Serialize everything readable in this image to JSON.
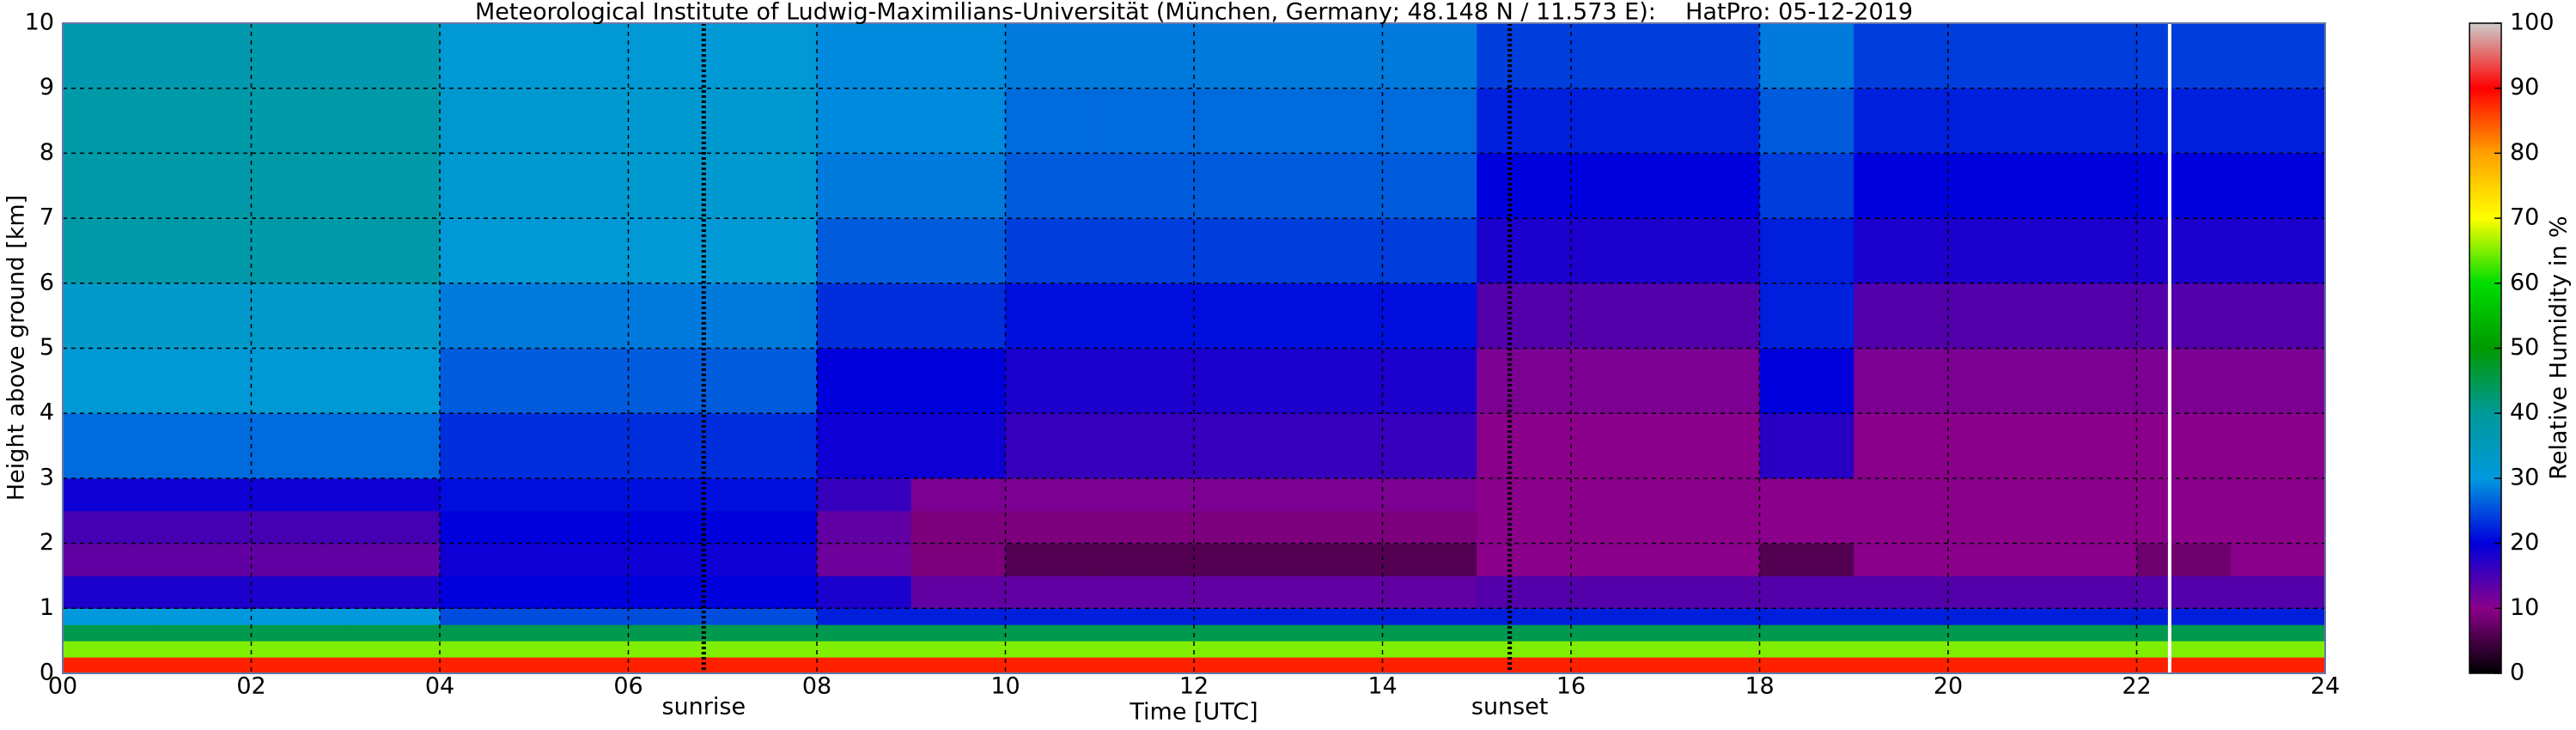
{
  "chart_data": {
    "type": "heatmap",
    "title": "Meteorological Institute of Ludwig-Maximilians-Universität (München, Germany; 48.148 N / 11.573 E):    HatPro: 05-12-2019",
    "xlabel": "Time [UTC]",
    "ylabel": "Height above ground [km]",
    "colorbar_label": "Relative Humidity in %",
    "xlim": [
      0,
      24
    ],
    "ylim": [
      0,
      10
    ],
    "zlim": [
      0,
      100
    ],
    "xticks": [
      {
        "value": 0,
        "label": "00"
      },
      {
        "value": 2,
        "label": "02"
      },
      {
        "value": 4,
        "label": "04"
      },
      {
        "value": 6,
        "label": "06"
      },
      {
        "value": 8,
        "label": "08"
      },
      10,
      12,
      14,
      16,
      18,
      20,
      22,
      24
    ],
    "yticks": [
      0,
      1,
      2,
      3,
      4,
      5,
      6,
      7,
      8,
      9,
      10
    ],
    "zticks": [
      0,
      10,
      20,
      30,
      40,
      50,
      60,
      70,
      80,
      90,
      100
    ],
    "colormap": [
      "#000000",
      "#8a008a",
      "#0000dd",
      "#0099dd",
      "#009999",
      "#009900",
      "#00dd00",
      "#ffff00",
      "#ffa000",
      "#ff0000",
      "#cccccc"
    ],
    "grid": true,
    "vlines": [
      {
        "x": 6.8,
        "label": "sunrise",
        "style": "dotted",
        "color": "#000000"
      },
      {
        "x": 15.35,
        "label": "sunset",
        "style": "dotted",
        "color": "#000000"
      },
      {
        "x": 22.35,
        "style": "solid",
        "color": "#ffffff"
      }
    ],
    "x_edges": [
      0,
      1,
      2,
      3,
      4,
      5,
      6,
      7,
      8,
      9,
      10,
      11,
      12,
      13,
      14,
      15,
      16,
      17,
      18,
      19,
      20,
      21,
      22,
      23,
      24
    ],
    "y_edges": [
      0,
      0.25,
      0.5,
      0.75,
      1,
      1.5,
      2,
      2.5,
      3,
      4,
      5,
      6,
      7,
      8,
      9,
      10
    ],
    "z": [
      [
        88,
        88,
        88,
        88,
        88,
        88,
        88,
        88,
        88,
        88,
        88,
        88,
        88,
        88,
        88,
        88,
        88,
        88,
        88,
        88,
        88,
        88,
        88,
        88
      ],
      [
        65,
        65,
        65,
        65,
        65,
        65,
        65,
        65,
        65,
        65,
        65,
        65,
        65,
        65,
        65,
        65,
        65,
        65,
        65,
        65,
        65,
        65,
        65,
        65
      ],
      [
        45,
        45,
        45,
        45,
        45,
        45,
        45,
        45,
        45,
        45,
        45,
        45,
        45,
        45,
        45,
        45,
        45,
        45,
        45,
        45,
        45,
        45,
        45,
        45
      ],
      [
        30,
        30,
        30,
        30,
        25,
        25,
        25,
        25,
        22,
        22,
        22,
        22,
        22,
        22,
        22,
        22,
        22,
        22,
        22,
        22,
        22,
        22,
        22,
        22
      ],
      [
        18,
        18,
        18,
        18,
        20,
        20,
        20,
        20,
        18,
        13,
        13,
        13,
        13,
        13,
        13,
        14,
        14,
        14,
        14,
        14,
        14,
        14,
        14,
        14
      ],
      [
        13,
        13,
        13,
        13,
        19,
        19,
        19,
        19,
        12,
        9,
        6,
        6,
        6,
        6,
        6,
        10,
        10,
        10,
        6,
        10,
        10,
        10,
        8,
        10
      ],
      [
        15,
        15,
        15,
        15,
        20,
        20,
        20,
        20,
        13,
        9,
        9,
        9,
        9,
        9,
        9,
        10,
        10,
        10,
        10,
        10,
        10,
        10,
        10,
        10
      ],
      [
        19,
        19,
        19,
        19,
        21,
        21,
        21,
        21,
        16,
        11,
        11,
        11,
        11,
        11,
        11,
        10,
        10,
        10,
        10,
        10,
        10,
        10,
        10,
        10
      ],
      [
        27,
        27,
        27,
        27,
        23,
        23,
        23,
        23,
        19,
        19,
        16,
        16,
        16,
        16,
        16,
        10,
        10,
        10,
        17,
        10,
        10,
        10,
        10,
        10
      ],
      [
        31,
        31,
        31,
        31,
        26,
        26,
        26,
        26,
        20,
        20,
        18,
        18,
        18,
        18,
        18,
        11,
        11,
        11,
        20,
        11,
        11,
        11,
        11,
        11
      ],
      [
        33,
        33,
        33,
        33,
        28,
        28,
        28,
        28,
        23,
        23,
        21,
        21,
        21,
        21,
        21,
        14,
        14,
        14,
        22,
        14,
        14,
        14,
        14,
        14
      ],
      [
        38,
        38,
        38,
        38,
        31,
        31,
        31,
        31,
        26,
        26,
        24,
        24,
        24,
        24,
        24,
        18,
        18,
        18,
        22,
        18,
        18,
        18,
        18,
        18
      ],
      [
        38,
        38,
        38,
        38,
        32,
        32,
        32,
        32,
        28,
        28,
        26,
        26,
        26,
        26,
        26,
        20,
        20,
        20,
        24,
        20,
        20,
        20,
        20,
        20
      ],
      [
        38,
        38,
        38,
        38,
        32,
        32,
        32,
        32,
        29,
        29,
        27,
        27,
        27,
        27,
        27,
        22,
        22,
        22,
        26,
        22,
        22,
        22,
        22,
        22
      ],
      [
        37,
        37,
        37,
        37,
        31,
        31,
        31,
        31,
        29,
        29,
        28,
        28,
        28,
        28,
        28,
        24,
        24,
        24,
        28,
        24,
        24,
        24,
        24,
        24
      ]
    ]
  }
}
